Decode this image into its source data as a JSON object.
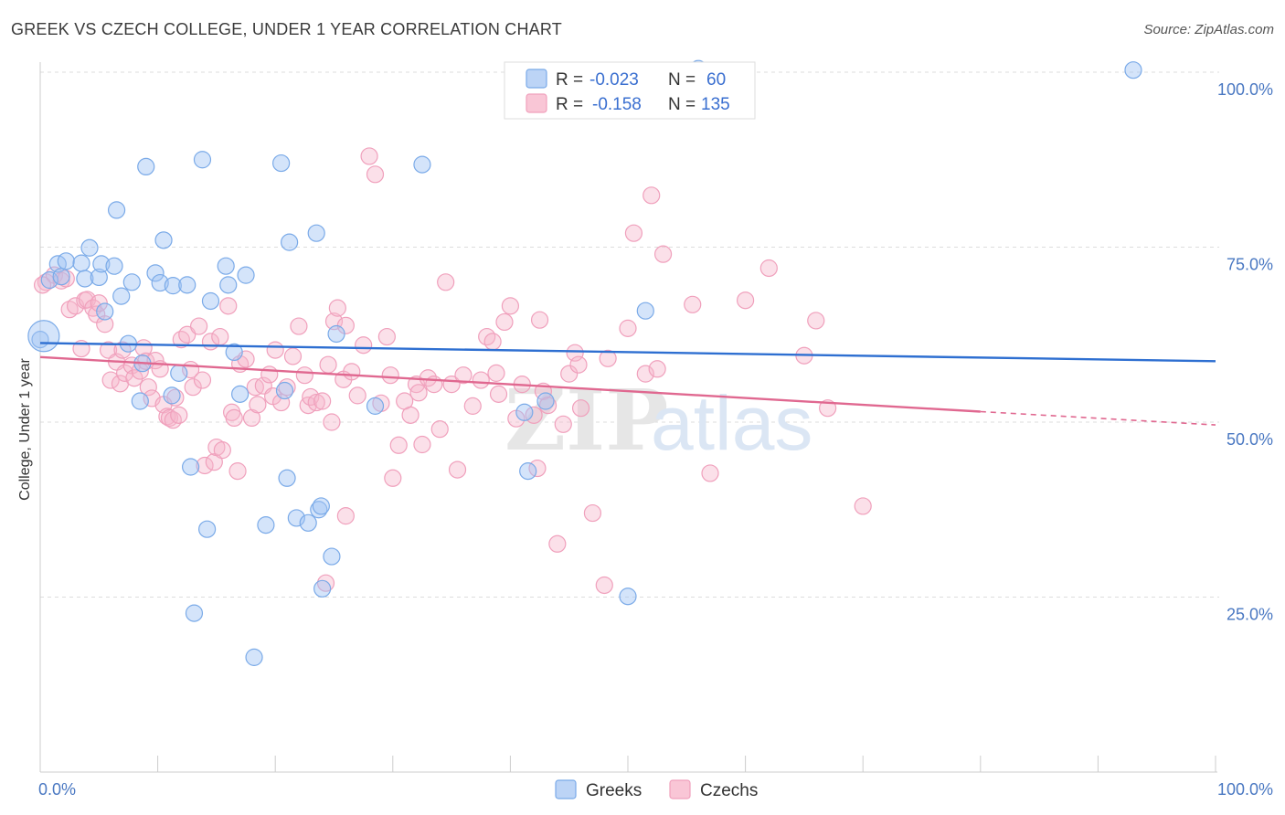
{
  "title": "GREEK VS CZECH COLLEGE, UNDER 1 YEAR CORRELATION CHART",
  "source": "Source: ZipAtlas.com",
  "chart_data": {
    "type": "scatter",
    "title": "GREEK VS CZECH COLLEGE, UNDER 1 YEAR CORRELATION CHART",
    "xlabel": "",
    "ylabel": "College, Under 1 year",
    "xlim": [
      0,
      100
    ],
    "ylim": [
      0,
      104
    ],
    "x_tick_labels": [
      {
        "value": 0,
        "label": "0.0%"
      },
      {
        "value": 100,
        "label": "100.0%"
      }
    ],
    "y_tick_labels": [
      {
        "value": 25,
        "label": "25.0%"
      },
      {
        "value": 50,
        "label": "50.0%"
      },
      {
        "value": 75,
        "label": "75.0%"
      },
      {
        "value": 100,
        "label": "100.0%"
      }
    ],
    "grid": "horizontal dashed",
    "legend_position": "top-center",
    "watermark": {
      "zip": "ZIP",
      "atlas": "atlas"
    },
    "stats": [
      {
        "r_label": "R = ",
        "r_value": "-0.023",
        "n_label": "N = ",
        "n_value": "60"
      },
      {
        "r_label": "R = ",
        "r_value": "-0.158",
        "n_label": "N = ",
        "n_value": "135"
      }
    ],
    "series": [
      {
        "name": "Greeks",
        "color": "#7aaae8",
        "line_color": "#2e6fd1",
        "trend": {
          "x0": 0,
          "y0": 61.3,
          "x1": 100,
          "y1": 58.7
        },
        "points": [
          [
            0.0,
            61.8
          ],
          [
            0.8,
            70.3
          ],
          [
            1.5,
            72.6
          ],
          [
            1.8,
            70.8
          ],
          [
            2.2,
            73.0
          ],
          [
            3.5,
            72.7
          ],
          [
            3.8,
            70.5
          ],
          [
            4.2,
            74.9
          ],
          [
            5.0,
            70.7
          ],
          [
            5.2,
            72.6
          ],
          [
            5.5,
            65.8
          ],
          [
            6.3,
            72.3
          ],
          [
            6.5,
            80.3
          ],
          [
            6.9,
            68.0
          ],
          [
            7.5,
            61.2
          ],
          [
            7.8,
            70.0
          ],
          [
            8.5,
            53.0
          ],
          [
            8.7,
            58.4
          ],
          [
            9.0,
            86.5
          ],
          [
            9.8,
            71.3
          ],
          [
            10.2,
            69.9
          ],
          [
            10.5,
            76.0
          ],
          [
            11.2,
            53.8
          ],
          [
            11.3,
            69.5
          ],
          [
            11.8,
            57.0
          ],
          [
            12.5,
            69.6
          ],
          [
            12.8,
            43.6
          ],
          [
            13.1,
            22.7
          ],
          [
            13.8,
            87.5
          ],
          [
            14.2,
            34.7
          ],
          [
            14.5,
            67.3
          ],
          [
            15.8,
            72.3
          ],
          [
            16.0,
            69.6
          ],
          [
            16.5,
            60.0
          ],
          [
            17.0,
            54.0
          ],
          [
            17.5,
            71.0
          ],
          [
            18.2,
            16.4
          ],
          [
            19.2,
            35.3
          ],
          [
            20.5,
            87.0
          ],
          [
            20.8,
            54.5
          ],
          [
            21.0,
            42.0
          ],
          [
            21.2,
            75.7
          ],
          [
            21.8,
            36.3
          ],
          [
            22.8,
            35.6
          ],
          [
            23.5,
            77.0
          ],
          [
            23.7,
            37.5
          ],
          [
            23.9,
            38.0
          ],
          [
            24.0,
            26.2
          ],
          [
            24.8,
            30.8
          ],
          [
            25.2,
            62.6
          ],
          [
            28.5,
            52.3
          ],
          [
            32.5,
            86.8
          ],
          [
            41.2,
            51.4
          ],
          [
            41.5,
            43.0
          ],
          [
            43.0,
            53.0
          ],
          [
            50.0,
            25.1
          ],
          [
            51.5,
            65.9
          ],
          [
            56.0,
            100.5
          ],
          [
            93.0,
            100.3
          ],
          [
            0.3,
            62.3
          ]
        ]
      },
      {
        "name": "Czechs",
        "color": "#f0a0bc",
        "line_color": "#e06890",
        "trend": {
          "x0": 0,
          "y0": 59.3,
          "x1": 80,
          "y1": 51.5,
          "dash_x1": 100,
          "dash_y1": 49.6
        },
        "points": [
          [
            0.5,
            70.0
          ],
          [
            1.2,
            71.0
          ],
          [
            1.8,
            70.2
          ],
          [
            2.2,
            70.5
          ],
          [
            2.5,
            66.1
          ],
          [
            3.0,
            66.6
          ],
          [
            3.5,
            60.5
          ],
          [
            3.8,
            67.4
          ],
          [
            4.0,
            67.5
          ],
          [
            4.5,
            66.3
          ],
          [
            4.8,
            65.4
          ],
          [
            5.0,
            67.0
          ],
          [
            5.5,
            64.0
          ],
          [
            5.8,
            60.3
          ],
          [
            6.0,
            56.0
          ],
          [
            6.5,
            58.6
          ],
          [
            6.8,
            55.5
          ],
          [
            7.0,
            60.3
          ],
          [
            7.2,
            57.0
          ],
          [
            7.8,
            58.1
          ],
          [
            8.0,
            56.3
          ],
          [
            8.5,
            57.3
          ],
          [
            8.8,
            60.6
          ],
          [
            9.0,
            58.7
          ],
          [
            9.2,
            55.0
          ],
          [
            9.5,
            53.4
          ],
          [
            9.8,
            58.8
          ],
          [
            10.2,
            57.6
          ],
          [
            10.5,
            52.5
          ],
          [
            10.8,
            50.8
          ],
          [
            11.0,
            50.6
          ],
          [
            11.3,
            50.3
          ],
          [
            11.5,
            53.5
          ],
          [
            11.8,
            51.0
          ],
          [
            12.0,
            61.8
          ],
          [
            12.5,
            62.5
          ],
          [
            12.8,
            57.5
          ],
          [
            13.0,
            55.0
          ],
          [
            13.5,
            63.7
          ],
          [
            13.8,
            56.0
          ],
          [
            14.0,
            43.8
          ],
          [
            14.5,
            61.5
          ],
          [
            14.8,
            44.3
          ],
          [
            15.0,
            46.4
          ],
          [
            15.3,
            62.2
          ],
          [
            15.5,
            46.0
          ],
          [
            16.0,
            66.6
          ],
          [
            16.3,
            51.4
          ],
          [
            16.5,
            50.6
          ],
          [
            16.8,
            43.0
          ],
          [
            17.0,
            58.3
          ],
          [
            17.5,
            59.0
          ],
          [
            18.0,
            50.6
          ],
          [
            18.3,
            55.0
          ],
          [
            18.5,
            52.5
          ],
          [
            19.0,
            55.2
          ],
          [
            19.5,
            56.8
          ],
          [
            19.8,
            53.7
          ],
          [
            20.0,
            60.3
          ],
          [
            20.5,
            52.8
          ],
          [
            21.0,
            55.0
          ],
          [
            21.5,
            59.4
          ],
          [
            22.0,
            63.7
          ],
          [
            22.5,
            56.7
          ],
          [
            22.8,
            52.4
          ],
          [
            23.0,
            53.6
          ],
          [
            23.5,
            52.8
          ],
          [
            24.0,
            53.0
          ],
          [
            24.5,
            58.2
          ],
          [
            24.8,
            50.0
          ],
          [
            25.0,
            64.4
          ],
          [
            25.3,
            66.3
          ],
          [
            25.8,
            56.1
          ],
          [
            26.0,
            63.8
          ],
          [
            26.5,
            57.2
          ],
          [
            27.0,
            53.8
          ],
          [
            27.5,
            61.0
          ],
          [
            28.0,
            88.0
          ],
          [
            28.5,
            85.4
          ],
          [
            29.0,
            52.7
          ],
          [
            29.5,
            62.2
          ],
          [
            29.8,
            56.7
          ],
          [
            30.0,
            42.0
          ],
          [
            30.5,
            46.7
          ],
          [
            31.0,
            53.0
          ],
          [
            31.5,
            51.0
          ],
          [
            32.0,
            55.4
          ],
          [
            32.2,
            54.2
          ],
          [
            32.5,
            46.8
          ],
          [
            33.0,
            56.3
          ],
          [
            33.5,
            55.4
          ],
          [
            34.0,
            49.0
          ],
          [
            34.5,
            70.0
          ],
          [
            35.0,
            55.4
          ],
          [
            35.5,
            43.2
          ],
          [
            36.0,
            56.7
          ],
          [
            36.8,
            52.3
          ],
          [
            37.5,
            56.0
          ],
          [
            38.0,
            62.2
          ],
          [
            38.5,
            61.5
          ],
          [
            38.8,
            57.0
          ],
          [
            39.0,
            54.0
          ],
          [
            39.5,
            64.3
          ],
          [
            40.0,
            66.6
          ],
          [
            40.5,
            50.5
          ],
          [
            41.0,
            55.4
          ],
          [
            42.0,
            51.0
          ],
          [
            42.3,
            43.4
          ],
          [
            42.5,
            64.6
          ],
          [
            42.8,
            54.4
          ],
          [
            43.2,
            52.4
          ],
          [
            44.0,
            32.6
          ],
          [
            44.5,
            49.7
          ],
          [
            45.0,
            56.9
          ],
          [
            45.5,
            59.9
          ],
          [
            45.8,
            58.2
          ],
          [
            46.0,
            52.0
          ],
          [
            47.0,
            37.0
          ],
          [
            48.0,
            26.7
          ],
          [
            48.3,
            59.1
          ],
          [
            50.0,
            63.4
          ],
          [
            50.5,
            77.0
          ],
          [
            51.5,
            56.9
          ],
          [
            52.0,
            82.4
          ],
          [
            52.5,
            57.6
          ],
          [
            53.0,
            74.0
          ],
          [
            55.5,
            66.8
          ],
          [
            57.0,
            42.7
          ],
          [
            60.0,
            67.4
          ],
          [
            62.0,
            72.0
          ],
          [
            65.0,
            59.5
          ],
          [
            66.0,
            64.5
          ],
          [
            67.0,
            52.0
          ],
          [
            70.0,
            38.0
          ],
          [
            0.2,
            69.6
          ],
          [
            26.0,
            36.6
          ],
          [
            24.3,
            27.0
          ]
        ]
      }
    ]
  }
}
